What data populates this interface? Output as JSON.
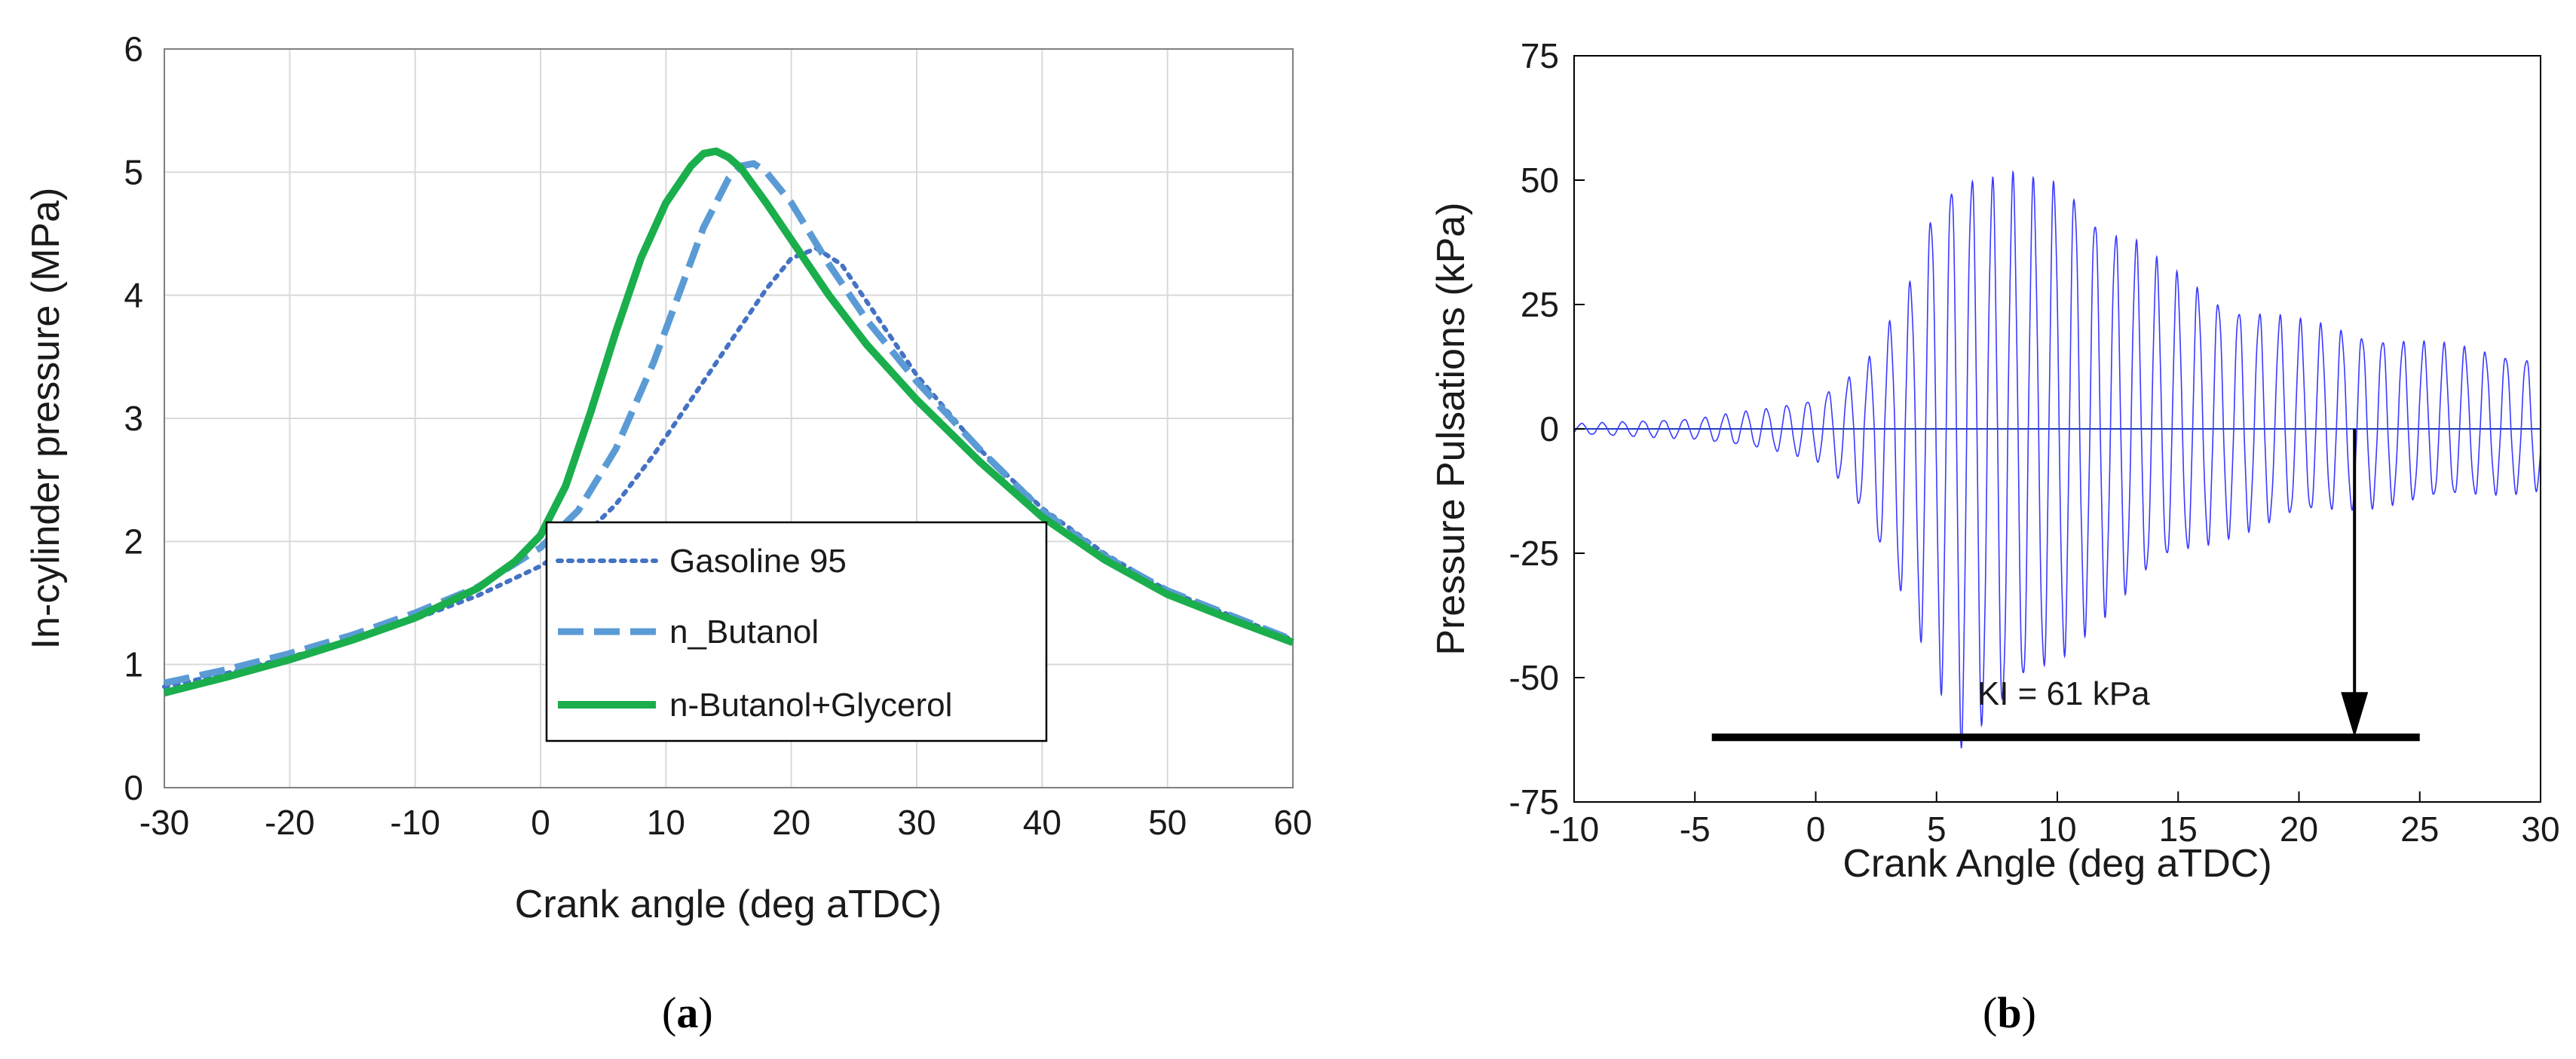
{
  "chart_data": [
    {
      "type": "line",
      "panel_caption": "a",
      "xlabel": "Crank angle  (deg aTDC)",
      "ylabel": "In-cylinder pressure  (MPa)",
      "xlim": [
        -30,
        60
      ],
      "ylim": [
        0,
        6
      ],
      "xticks": [
        -30,
        -20,
        -10,
        0,
        10,
        20,
        30,
        40,
        50,
        60
      ],
      "yticks": [
        0,
        1,
        2,
        3,
        4,
        5,
        6
      ],
      "grid": true,
      "legend_position": "center",
      "series": [
        {
          "name": "Gasoline 95",
          "style": "dotted",
          "color": "#4472c4",
          "x": [
            -30,
            -25,
            -20,
            -15,
            -10,
            -5,
            0,
            3,
            6,
            9,
            12,
            15,
            18,
            20,
            22,
            24,
            26,
            30,
            35,
            40,
            45,
            50,
            55,
            60
          ],
          "y": [
            0.82,
            0.93,
            1.06,
            1.2,
            1.37,
            1.56,
            1.8,
            2.0,
            2.3,
            2.7,
            3.15,
            3.6,
            4.05,
            4.3,
            4.38,
            4.25,
            3.95,
            3.35,
            2.75,
            2.27,
            1.9,
            1.6,
            1.4,
            1.2
          ]
        },
        {
          "name": "n_Butanol",
          "style": "dashed",
          "color": "#5b9bd5",
          "x": [
            -30,
            -25,
            -20,
            -15,
            -10,
            -5,
            0,
            3,
            6,
            9,
            11,
            13,
            15,
            16,
            17,
            18,
            20,
            23,
            26,
            30,
            35,
            40,
            45,
            50,
            55,
            60
          ],
          "y": [
            0.85,
            0.96,
            1.09,
            1.24,
            1.42,
            1.63,
            1.95,
            2.25,
            2.75,
            3.45,
            4.0,
            4.55,
            4.95,
            5.05,
            5.07,
            5.0,
            4.75,
            4.25,
            3.8,
            3.3,
            2.75,
            2.25,
            1.88,
            1.6,
            1.4,
            1.2
          ]
        },
        {
          "name": "n-Butanol+Glycerol",
          "style": "solid",
          "color": "#1aae4c",
          "x": [
            -30,
            -25,
            -20,
            -15,
            -10,
            -5,
            -2,
            0,
            2,
            4,
            6,
            8,
            10,
            12,
            13,
            14,
            15,
            16,
            18,
            20,
            23,
            26,
            30,
            35,
            40,
            45,
            50,
            55,
            60
          ],
          "y": [
            0.77,
            0.9,
            1.04,
            1.2,
            1.38,
            1.62,
            1.84,
            2.05,
            2.45,
            3.05,
            3.7,
            4.3,
            4.75,
            5.05,
            5.15,
            5.17,
            5.12,
            5.03,
            4.75,
            4.45,
            4.0,
            3.6,
            3.15,
            2.65,
            2.2,
            1.85,
            1.57,
            1.37,
            1.18
          ]
        }
      ]
    },
    {
      "type": "line",
      "panel_caption": "b",
      "xlabel": "Crank Angle (deg aTDC)",
      "ylabel": "Pressure Pulsations (kPa)",
      "xlim": [
        -10,
        30
      ],
      "ylim": [
        -75,
        75
      ],
      "xticks": [
        -10,
        -5,
        0,
        5,
        10,
        15,
        20,
        25,
        30
      ],
      "yticks": [
        75,
        50,
        25,
        0,
        -25,
        -50,
        -75
      ],
      "grid": false,
      "series": [
        {
          "name": "pressure pulsation",
          "color": "#3a3aff",
          "description_envelope_peaks_x": [
            -10,
            -5,
            -2,
            0,
            1,
            2,
            3,
            4,
            5,
            6,
            7,
            8,
            9,
            10,
            11,
            12,
            13,
            14,
            15,
            17,
            20,
            25,
            30
          ],
          "envelope_upper": [
            1,
            2,
            4,
            6,
            9,
            12,
            20,
            30,
            47,
            52,
            49,
            49,
            48,
            49,
            47,
            40,
            38,
            33,
            30,
            25,
            21,
            17,
            14
          ],
          "envelope_lower": [
            -1,
            -2,
            -4,
            -6,
            -10,
            -17,
            -28,
            -38,
            -48,
            -61,
            -58,
            -55,
            -50,
            -46,
            -40,
            -36,
            -32,
            -28,
            -25,
            -21,
            -17,
            -14,
            -12
          ],
          "oscillation_period_deg": 0.85
        }
      ],
      "annotations": [
        {
          "text": "KI = 61 kPa",
          "x": 7,
          "y": -53
        },
        {
          "type": "hline",
          "x_start": -4.3,
          "x_end": 25,
          "y": -62
        },
        {
          "type": "arrow",
          "x": 22.3,
          "y_start": 0,
          "y_end": -62
        }
      ]
    }
  ],
  "captions": {
    "a": {
      "open": "(",
      "letter": "a",
      "close": ")"
    },
    "b": {
      "open": "(",
      "letter": "b",
      "close": ")"
    }
  }
}
